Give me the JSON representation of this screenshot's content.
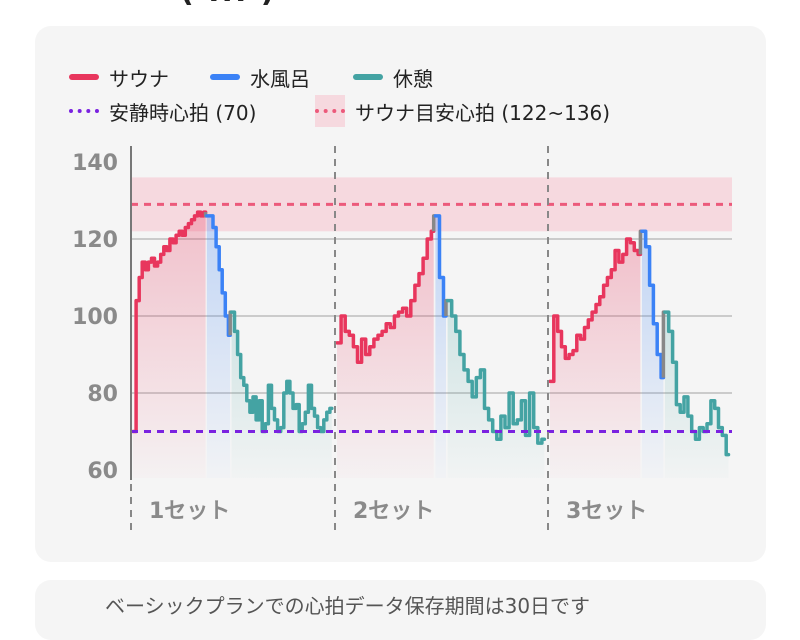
{
  "header": {
    "fragment": "( ... )"
  },
  "chart_data": {
    "type": "line",
    "title": "",
    "xlabel": "",
    "ylabel": "",
    "ylim": [
      60,
      140
    ],
    "yticks": [
      60,
      80,
      100,
      120,
      140
    ],
    "grid": true,
    "legend_position": "top-left",
    "resting_hr": 70,
    "target_band": [
      122,
      136
    ],
    "target_line": 129,
    "colors": {
      "sauna": "#e8365d",
      "cold": "#3b82f6",
      "rest": "#44a3a3",
      "transition": "#888888",
      "resting": "#7a22e0",
      "band": "#f6d9df",
      "band_line": "#ec5a7b",
      "sauna_fill": "#f2c4cd",
      "cold_fill": "#c9e4ef",
      "rest_fill": "#dcece8"
    },
    "legend": {
      "sauna": "サウナ",
      "cold": "水風呂",
      "rest": "休憩",
      "resting": "安静時心拍 (70)",
      "target": "サウナ目安心拍 (122~136)"
    },
    "set_labels": [
      "1セット",
      "2セット",
      "3セット"
    ],
    "sets": [
      {
        "sauna": [
          70,
          104,
          110,
          114,
          112,
          114,
          115,
          113,
          114,
          116,
          118,
          117,
          120,
          119,
          121,
          122,
          121,
          123,
          124,
          125,
          126,
          127,
          126,
          127
        ],
        "cold": [
          126,
          126,
          123,
          118,
          112,
          106,
          100,
          95
        ],
        "rest": [
          101,
          96,
          90,
          84,
          82,
          78,
          75,
          79,
          73,
          78,
          70,
          72,
          82,
          76,
          73,
          70,
          71,
          80,
          83,
          80,
          76,
          77,
          70,
          72,
          75,
          82,
          76,
          74,
          71,
          70,
          73,
          75,
          76
        ]
      },
      {
        "sauna": [
          93,
          100,
          96,
          95,
          92,
          88,
          94,
          90,
          92,
          94,
          95,
          96,
          98,
          97,
          100,
          101,
          102,
          100,
          104,
          108,
          111,
          115,
          120,
          122
        ],
        "cold": [
          126,
          110,
          100
        ],
        "rest": [
          104,
          100,
          96,
          90,
          86,
          83,
          79,
          84,
          86,
          76,
          73,
          70,
          68,
          74,
          71,
          80,
          72,
          73,
          78,
          69,
          80,
          71,
          67,
          68
        ]
      },
      {
        "sauna": [
          83,
          100,
          96,
          92,
          89,
          90,
          91,
          95,
          94,
          97,
          99,
          101,
          103,
          105,
          108,
          110,
          112,
          117,
          114,
          116,
          120,
          119,
          117,
          116
        ],
        "cold": [
          122,
          118,
          108,
          98,
          90,
          84
        ],
        "rest": [
          101,
          96,
          88,
          77,
          75,
          79,
          74,
          70,
          68,
          71,
          70,
          72,
          78,
          76,
          71,
          69,
          64
        ]
      }
    ]
  },
  "footer": {
    "text": "ベーシックプランでの心拍データ保存期間は30日です"
  }
}
